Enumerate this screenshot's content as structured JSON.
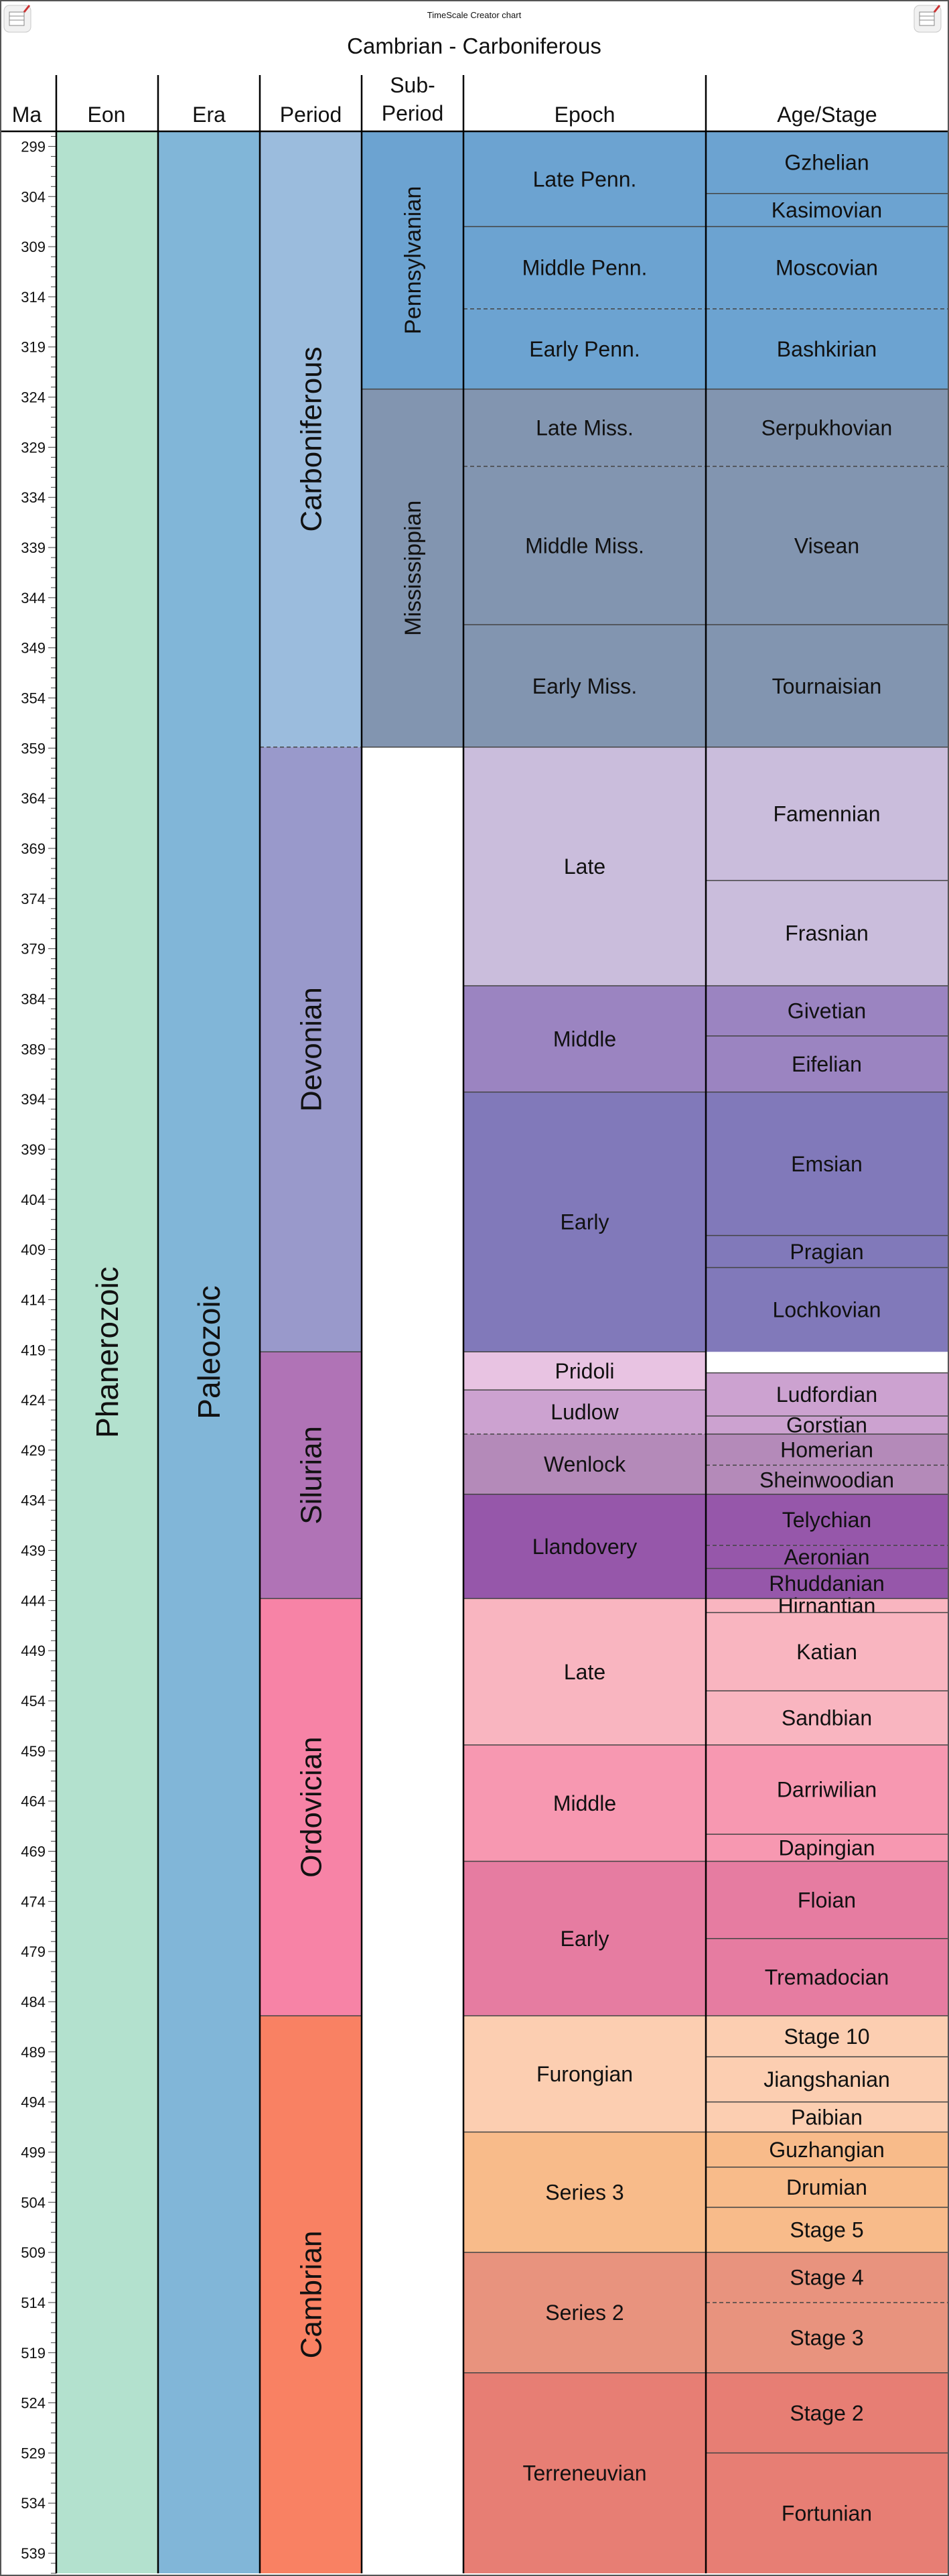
{
  "credit": "TimeScale Creator chart",
  "title": "Cambrian - Carboniferous",
  "columns": {
    "ma": "Ma",
    "eon": "Eon",
    "era": "Era",
    "period": "Period",
    "subperiod_line1": "Sub-",
    "subperiod_line2": "Period",
    "epoch": "Epoch",
    "stage": "Age/Stage"
  },
  "axis": {
    "top_ma": 297.5,
    "bottom_ma": 541,
    "first_label": 299,
    "label_step": 5,
    "minor_step": 1
  },
  "eons": [
    {
      "name": "Phanerozoic",
      "start": 297.5,
      "end": 541,
      "color": "#b3e1ce"
    }
  ],
  "eras": [
    {
      "name": "Paleozoic",
      "start": 297.5,
      "end": 541,
      "color": "#81b6d8"
    }
  ],
  "periods": [
    {
      "name": "Carboniferous",
      "start": 297.5,
      "end": 358.9,
      "color": "#9bbcdd"
    },
    {
      "name": "Devonian",
      "start": 358.9,
      "end": 419.2,
      "color": "#9999cb"
    },
    {
      "name": "Silurian",
      "start": 419.2,
      "end": 443.8,
      "color": "#b073b6"
    },
    {
      "name": "Ordovician",
      "start": 443.8,
      "end": 485.4,
      "color": "#f783a6"
    },
    {
      "name": "Cambrian",
      "start": 485.4,
      "end": 541,
      "color": "#f98163"
    }
  ],
  "subperiods": [
    {
      "name": "Pennsylvanian",
      "start": 297.5,
      "end": 323.2,
      "color": "#6ca3d1"
    },
    {
      "name": "Mississippian",
      "start": 323.2,
      "end": 358.9,
      "color": "#8295b0"
    }
  ],
  "epochs": [
    {
      "name": "Late Penn.",
      "start": 297.5,
      "end": 307.0,
      "color": "#6ca3d1"
    },
    {
      "name": "Middle Penn.",
      "start": 307.0,
      "end": 315.2,
      "color": "#6ca3d1"
    },
    {
      "name": "Early Penn.",
      "start": 315.2,
      "end": 323.2,
      "color": "#6ca3d1"
    },
    {
      "name": "Late Miss.",
      "start": 323.2,
      "end": 330.9,
      "color": "#8295b0"
    },
    {
      "name": "Middle Miss.",
      "start": 330.9,
      "end": 346.7,
      "color": "#8295b0"
    },
    {
      "name": "Early Miss.",
      "start": 346.7,
      "end": 358.9,
      "color": "#8295b0"
    },
    {
      "name": "Late",
      "start": 358.9,
      "end": 382.7,
      "color": "#cabddc"
    },
    {
      "name": "Middle",
      "start": 382.7,
      "end": 393.3,
      "color": "#9b84c1"
    },
    {
      "name": "Early",
      "start": 393.3,
      "end": 419.2,
      "color": "#8179ba"
    },
    {
      "name": "Pridoli",
      "start": 419.2,
      "end": 423.0,
      "color": "#e8c3e2"
    },
    {
      "name": "Ludlow",
      "start": 423.0,
      "end": 427.4,
      "color": "#cca2d0"
    },
    {
      "name": "Wenlock",
      "start": 427.4,
      "end": 433.4,
      "color": "#b48ab9"
    },
    {
      "name": "Llandovery",
      "start": 433.4,
      "end": 443.8,
      "color": "#9657aa"
    },
    {
      "name": "Late",
      "start": 443.8,
      "end": 458.4,
      "color": "#f9b5c0"
    },
    {
      "name": "Middle",
      "start": 458.4,
      "end": 470.0,
      "color": "#f798b1"
    },
    {
      "name": "Early",
      "start": 470.0,
      "end": 485.4,
      "color": "#e67ca1"
    },
    {
      "name": "Furongian",
      "start": 485.4,
      "end": 497.0,
      "color": "#fcceb1"
    },
    {
      "name": "Series 3",
      "start": 497.0,
      "end": 509.0,
      "color": "#f8bb8a"
    },
    {
      "name": "Series 2",
      "start": 509.0,
      "end": 521.0,
      "color": "#e8937e"
    },
    {
      "name": "Terreneuvian",
      "start": 521.0,
      "end": 541.0,
      "color": "#e77e74"
    }
  ],
  "stages": [
    {
      "name": "Gzhelian",
      "start": 297.5,
      "end": 303.7,
      "color": "#6ca3d1"
    },
    {
      "name": "Kasimovian",
      "start": 303.7,
      "end": 307.0,
      "color": "#6ca3d1"
    },
    {
      "name": "Moscovian",
      "start": 307.0,
      "end": 315.2,
      "color": "#6ca3d1"
    },
    {
      "name": "Bashkirian",
      "start": 315.2,
      "end": 323.2,
      "color": "#6ca3d1"
    },
    {
      "name": "Serpukhovian",
      "start": 323.2,
      "end": 330.9,
      "color": "#8295b0"
    },
    {
      "name": "Visean",
      "start": 330.9,
      "end": 346.7,
      "color": "#8295b0"
    },
    {
      "name": "Tournaisian",
      "start": 346.7,
      "end": 358.9,
      "color": "#8295b0"
    },
    {
      "name": "Famennian",
      "start": 358.9,
      "end": 372.2,
      "color": "#cabddc"
    },
    {
      "name": "Frasnian",
      "start": 372.2,
      "end": 382.7,
      "color": "#cabddc"
    },
    {
      "name": "Givetian",
      "start": 382.7,
      "end": 387.7,
      "color": "#9b84c1"
    },
    {
      "name": "Eifelian",
      "start": 387.7,
      "end": 393.3,
      "color": "#9b84c1"
    },
    {
      "name": "Emsian",
      "start": 393.3,
      "end": 407.6,
      "color": "#8179ba"
    },
    {
      "name": "Pragian",
      "start": 407.6,
      "end": 410.8,
      "color": "#8179ba"
    },
    {
      "name": "Lochkovian",
      "start": 410.8,
      "end": 419.2,
      "color": "#8179ba"
    },
    {
      "name": "Ludfordian",
      "start": 421.3,
      "end": 425.6,
      "color": "#cca2d0"
    },
    {
      "name": "Gorstian",
      "start": 425.6,
      "end": 427.4,
      "color": "#cca2d0"
    },
    {
      "name": "Homerian",
      "start": 427.4,
      "end": 430.5,
      "color": "#b48ab9"
    },
    {
      "name": "Sheinwoodian",
      "start": 430.5,
      "end": 433.4,
      "color": "#b48ab9"
    },
    {
      "name": "Telychian",
      "start": 433.4,
      "end": 438.5,
      "color": "#9657aa"
    },
    {
      "name": "Aeronian",
      "start": 438.5,
      "end": 440.8,
      "color": "#9657aa"
    },
    {
      "name": "Rhuddanian",
      "start": 440.8,
      "end": 443.8,
      "color": "#9657aa"
    },
    {
      "name": "Hirnantian",
      "start": 443.8,
      "end": 445.2,
      "color": "#f9b5c0"
    },
    {
      "name": "Katian",
      "start": 445.2,
      "end": 453.0,
      "color": "#f9b5c0"
    },
    {
      "name": "Sandbian",
      "start": 453.0,
      "end": 458.4,
      "color": "#f9b5c0"
    },
    {
      "name": "Darriwilian",
      "start": 458.4,
      "end": 467.3,
      "color": "#f798b1"
    },
    {
      "name": "Dapingian",
      "start": 467.3,
      "end": 470.0,
      "color": "#f798b1"
    },
    {
      "name": "Floian",
      "start": 470.0,
      "end": 477.7,
      "color": "#e67ca1"
    },
    {
      "name": "Tremadocian",
      "start": 477.7,
      "end": 485.4,
      "color": "#e67ca1"
    },
    {
      "name": "Stage 10",
      "start": 485.4,
      "end": 489.5,
      "color": "#fcceb1"
    },
    {
      "name": "Jiangshanian",
      "start": 489.5,
      "end": 494.0,
      "color": "#fcceb1"
    },
    {
      "name": "Paibian",
      "start": 494.0,
      "end": 497.0,
      "color": "#fcceb1"
    },
    {
      "name": "Guzhangian",
      "start": 497.0,
      "end": 500.5,
      "color": "#f8bb8a"
    },
    {
      "name": "Drumian",
      "start": 500.5,
      "end": 504.5,
      "color": "#f8bb8a"
    },
    {
      "name": "Stage 5",
      "start": 504.5,
      "end": 509.0,
      "color": "#f8bb8a"
    },
    {
      "name": "Stage 4",
      "start": 509.0,
      "end": 514.0,
      "color": "#e8937e"
    },
    {
      "name": "Stage 3",
      "start": 514.0,
      "end": 521.0,
      "color": "#e8937e"
    },
    {
      "name": "Stage 2",
      "start": 521.0,
      "end": 529.0,
      "color": "#e77e74"
    },
    {
      "name": "Fortunian",
      "start": 529.0,
      "end": 541.0,
      "color": "#e77e74"
    }
  ],
  "dashed_boundaries": {
    "periods": [
      358.9
    ],
    "epochs": [
      315.2,
      330.9,
      427.4
    ],
    "stages": [
      315.2,
      330.9,
      430.5,
      438.5,
      514.0
    ]
  }
}
